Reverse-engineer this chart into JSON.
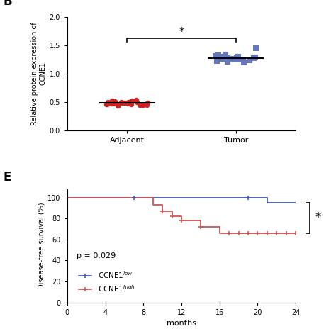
{
  "panel_B": {
    "title": "B",
    "ylabel": "Relative protein expression of\nCCNE1",
    "categories": [
      "Adjacent",
      "Tumor"
    ],
    "adjacent_color": "#CC2222",
    "tumor_color": "#6677BB",
    "adjacent_values": [
      0.48,
      0.44,
      0.5,
      0.46,
      0.52,
      0.47,
      0.49,
      0.45,
      0.5,
      0.53,
      0.46,
      0.48,
      0.44,
      0.51,
      0.47,
      0.49,
      0.45,
      0.5,
      0.48,
      0.46,
      0.52,
      0.47,
      0.43,
      0.5,
      0.48,
      0.45,
      0.49,
      0.47,
      0.51,
      0.46
    ],
    "tumor_values": [
      1.25,
      1.3,
      1.22,
      1.28,
      1.45,
      1.23,
      1.27,
      1.32,
      1.2,
      1.26,
      1.29,
      1.24,
      1.31,
      1.27,
      1.33,
      1.25,
      1.21,
      1.28,
      1.3,
      1.26
    ],
    "ylim": [
      0.0,
      2.0
    ],
    "yticks": [
      0.0,
      0.5,
      1.0,
      1.5,
      2.0
    ],
    "sig_y": 1.62,
    "marker_size": 28
  },
  "panel_E": {
    "title": "E",
    "ylabel": "Disease-free survival (%)",
    "xlabel": "months",
    "p_value": "p = 0.029",
    "low_color": "#4455BB",
    "high_color": "#CC5555",
    "low_label": "CCNE1$^{low}$",
    "high_label": "CCNE1$^{high}$",
    "low_times": [
      0,
      7,
      19,
      21,
      24,
      24.5
    ],
    "low_surv": [
      100,
      100,
      100,
      95,
      95,
      95
    ],
    "low_censor_times": [
      7,
      19
    ],
    "low_censor_surv": [
      100,
      100
    ],
    "high_times": [
      0,
      8,
      9,
      10,
      11,
      12,
      14,
      16,
      17,
      24,
      24.5
    ],
    "high_surv": [
      100,
      100,
      93,
      87,
      82,
      78,
      72,
      66,
      66,
      66,
      66
    ],
    "high_censor_times": [
      10,
      11,
      12,
      14,
      17,
      18,
      19,
      20,
      21,
      22,
      23,
      24
    ],
    "high_censor_surv": [
      87,
      82,
      78,
      72,
      66,
      66,
      66,
      66,
      66,
      66,
      66,
      66
    ],
    "xlim": [
      0,
      24
    ],
    "xticks": [
      0,
      4,
      8,
      12,
      16,
      20,
      24
    ],
    "ylim": [
      0,
      108
    ],
    "yticks": [
      0,
      20,
      40,
      60,
      80,
      100
    ],
    "sig_bracket_low_y": 95,
    "sig_bracket_high_y": 66
  }
}
